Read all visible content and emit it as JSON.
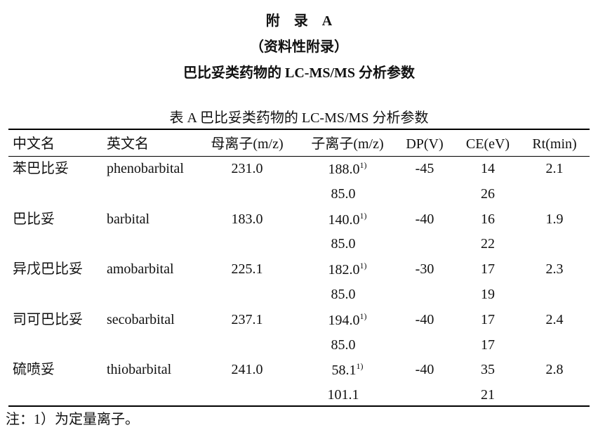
{
  "header": {
    "title": "附　录　A",
    "subtitle": "（资料性附录）",
    "heading": "巴比妥类药物的 LC-MS/MS 分析参数"
  },
  "table": {
    "caption": "表 A  巴比妥类药物的 LC-MS/MS 分析参数",
    "columns": [
      "中文名",
      "英文名",
      "母离子(m/z)",
      "子离子(m/z)",
      "DP(V)",
      "CE(eV)",
      "Rt(min)"
    ],
    "compounds": [
      {
        "cn": "苯巴比妥",
        "en": "phenobarbital",
        "parent": "231.0",
        "dp": "-45",
        "rt": "2.1",
        "ions": [
          {
            "mz": "188.0",
            "note": "1)",
            "ce": "14"
          },
          {
            "mz": "85.0",
            "ce": "26"
          }
        ]
      },
      {
        "cn": "巴比妥",
        "en": "barbital",
        "parent": "183.0",
        "dp": "-40",
        "rt": "1.9",
        "ions": [
          {
            "mz": "140.0",
            "note": "1)",
            "ce": "16"
          },
          {
            "mz": "85.0",
            "ce": "22"
          }
        ]
      },
      {
        "cn": "异戊巴比妥",
        "en": "amobarbital",
        "parent": "225.1",
        "dp": "-30",
        "rt": "2.3",
        "ions": [
          {
            "mz": "182.0",
            "note": "1)",
            "ce": "17"
          },
          {
            "mz": "85.0",
            "ce": "19"
          }
        ]
      },
      {
        "cn": "司可巴比妥",
        "en": "secobarbital",
        "parent": "237.1",
        "dp": "-40",
        "rt": "2.4",
        "ions": [
          {
            "mz": "194.0",
            "note": "1)",
            "ce": "17"
          },
          {
            "mz": "85.0",
            "ce": "17"
          }
        ]
      },
      {
        "cn": "硫喷妥",
        "en": "thiobarbital",
        "parent": "241.0",
        "dp": "-40",
        "rt": "2.8",
        "ions": [
          {
            "mz": "58.1",
            "note": "1)",
            "ce": "35"
          },
          {
            "mz": "101.1",
            "ce": "21"
          }
        ]
      }
    ],
    "footnote": "注：1）为定量离子。"
  }
}
